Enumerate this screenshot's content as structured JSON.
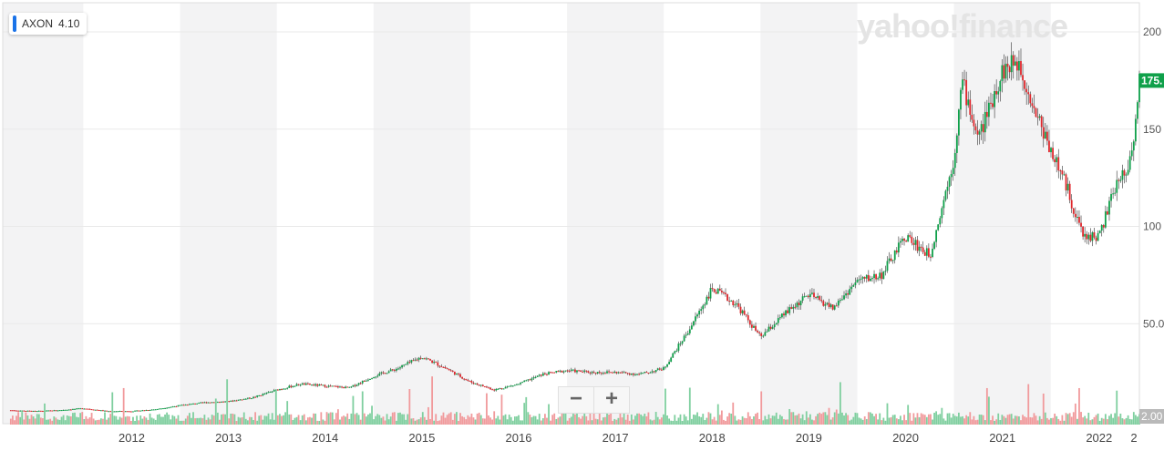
{
  "legend": {
    "symbol": "AXON",
    "value": "4.10",
    "color": "#1a73e8"
  },
  "watermark": {
    "text": "yahoo!finance"
  },
  "zoom": {
    "out_label": "−",
    "in_label": "+"
  },
  "colors": {
    "up": "#0fa04a",
    "down": "#e0262b",
    "band": "#f3f3f4",
    "price_badge": "#0fa04a",
    "grey_badge": "#b9b9b9"
  },
  "chart_data": {
    "type": "candlestick",
    "title": "",
    "xlabel": "",
    "ylabel": "",
    "x_tick_labels": [
      "2012",
      "2013",
      "2014",
      "2015",
      "2016",
      "2017",
      "2018",
      "2019",
      "2020",
      "2021",
      "2022",
      "2"
    ],
    "y_tick_labels": [
      "200",
      "150",
      "100",
      "50.0",
      "2.00"
    ],
    "xlim": [
      "2011-03",
      "2022-12"
    ],
    "ylim": [
      0,
      215
    ],
    "last_price_label": "175.",
    "volume_label": "2.00",
    "grid": true,
    "series": [
      {
        "values": [
          [
            "2011-04",
            5.5
          ],
          [
            "2011-07",
            5.0
          ],
          [
            "2011-10",
            5.5
          ],
          [
            "2012-01",
            6.5
          ],
          [
            "2012-04",
            5.0
          ],
          [
            "2012-07",
            5.0
          ],
          [
            "2012-10",
            6.0
          ],
          [
            "2013-01",
            8.0
          ],
          [
            "2013-04",
            9.5
          ],
          [
            "2013-07",
            10.0
          ],
          [
            "2013-10",
            12.0
          ],
          [
            "2014-01",
            16.0
          ],
          [
            "2014-04",
            19.0
          ],
          [
            "2014-07",
            18.0
          ],
          [
            "2014-10",
            17.0
          ],
          [
            "2015-01",
            23.0
          ],
          [
            "2015-04",
            27.0
          ],
          [
            "2015-07",
            33.0
          ],
          [
            "2015-10",
            27.0
          ],
          [
            "2016-01",
            20.0
          ],
          [
            "2016-04",
            16.0
          ],
          [
            "2016-07",
            19.0
          ],
          [
            "2016-10",
            24.0
          ],
          [
            "2017-01",
            26.0
          ],
          [
            "2017-04",
            25.0
          ],
          [
            "2017-07",
            25.0
          ],
          [
            "2017-10",
            24.0
          ],
          [
            "2018-01",
            27.0
          ],
          [
            "2018-04",
            46.0
          ],
          [
            "2018-07",
            68.0
          ],
          [
            "2018-10",
            60.0
          ],
          [
            "2019-01",
            43.0
          ],
          [
            "2019-04",
            55.0
          ],
          [
            "2019-07",
            65.0
          ],
          [
            "2019-10",
            58.0
          ],
          [
            "2020-01",
            72.0
          ],
          [
            "2020-04",
            75.0
          ],
          [
            "2020-07",
            95.0
          ],
          [
            "2020-10",
            85.0
          ],
          [
            "2021-01",
            135.0
          ],
          [
            "2021-02",
            175.0
          ],
          [
            "2021-04",
            145.0
          ],
          [
            "2021-07",
            180.0
          ],
          [
            "2021-09",
            185.0
          ],
          [
            "2021-11",
            160.0
          ],
          [
            "2022-01",
            140.0
          ],
          [
            "2022-03",
            120.0
          ],
          [
            "2022-05",
            95.0
          ],
          [
            "2022-07",
            95.0
          ],
          [
            "2022-09",
            120.0
          ],
          [
            "2022-11",
            135.0
          ],
          [
            "2022-12",
            175.0
          ]
        ]
      }
    ]
  }
}
